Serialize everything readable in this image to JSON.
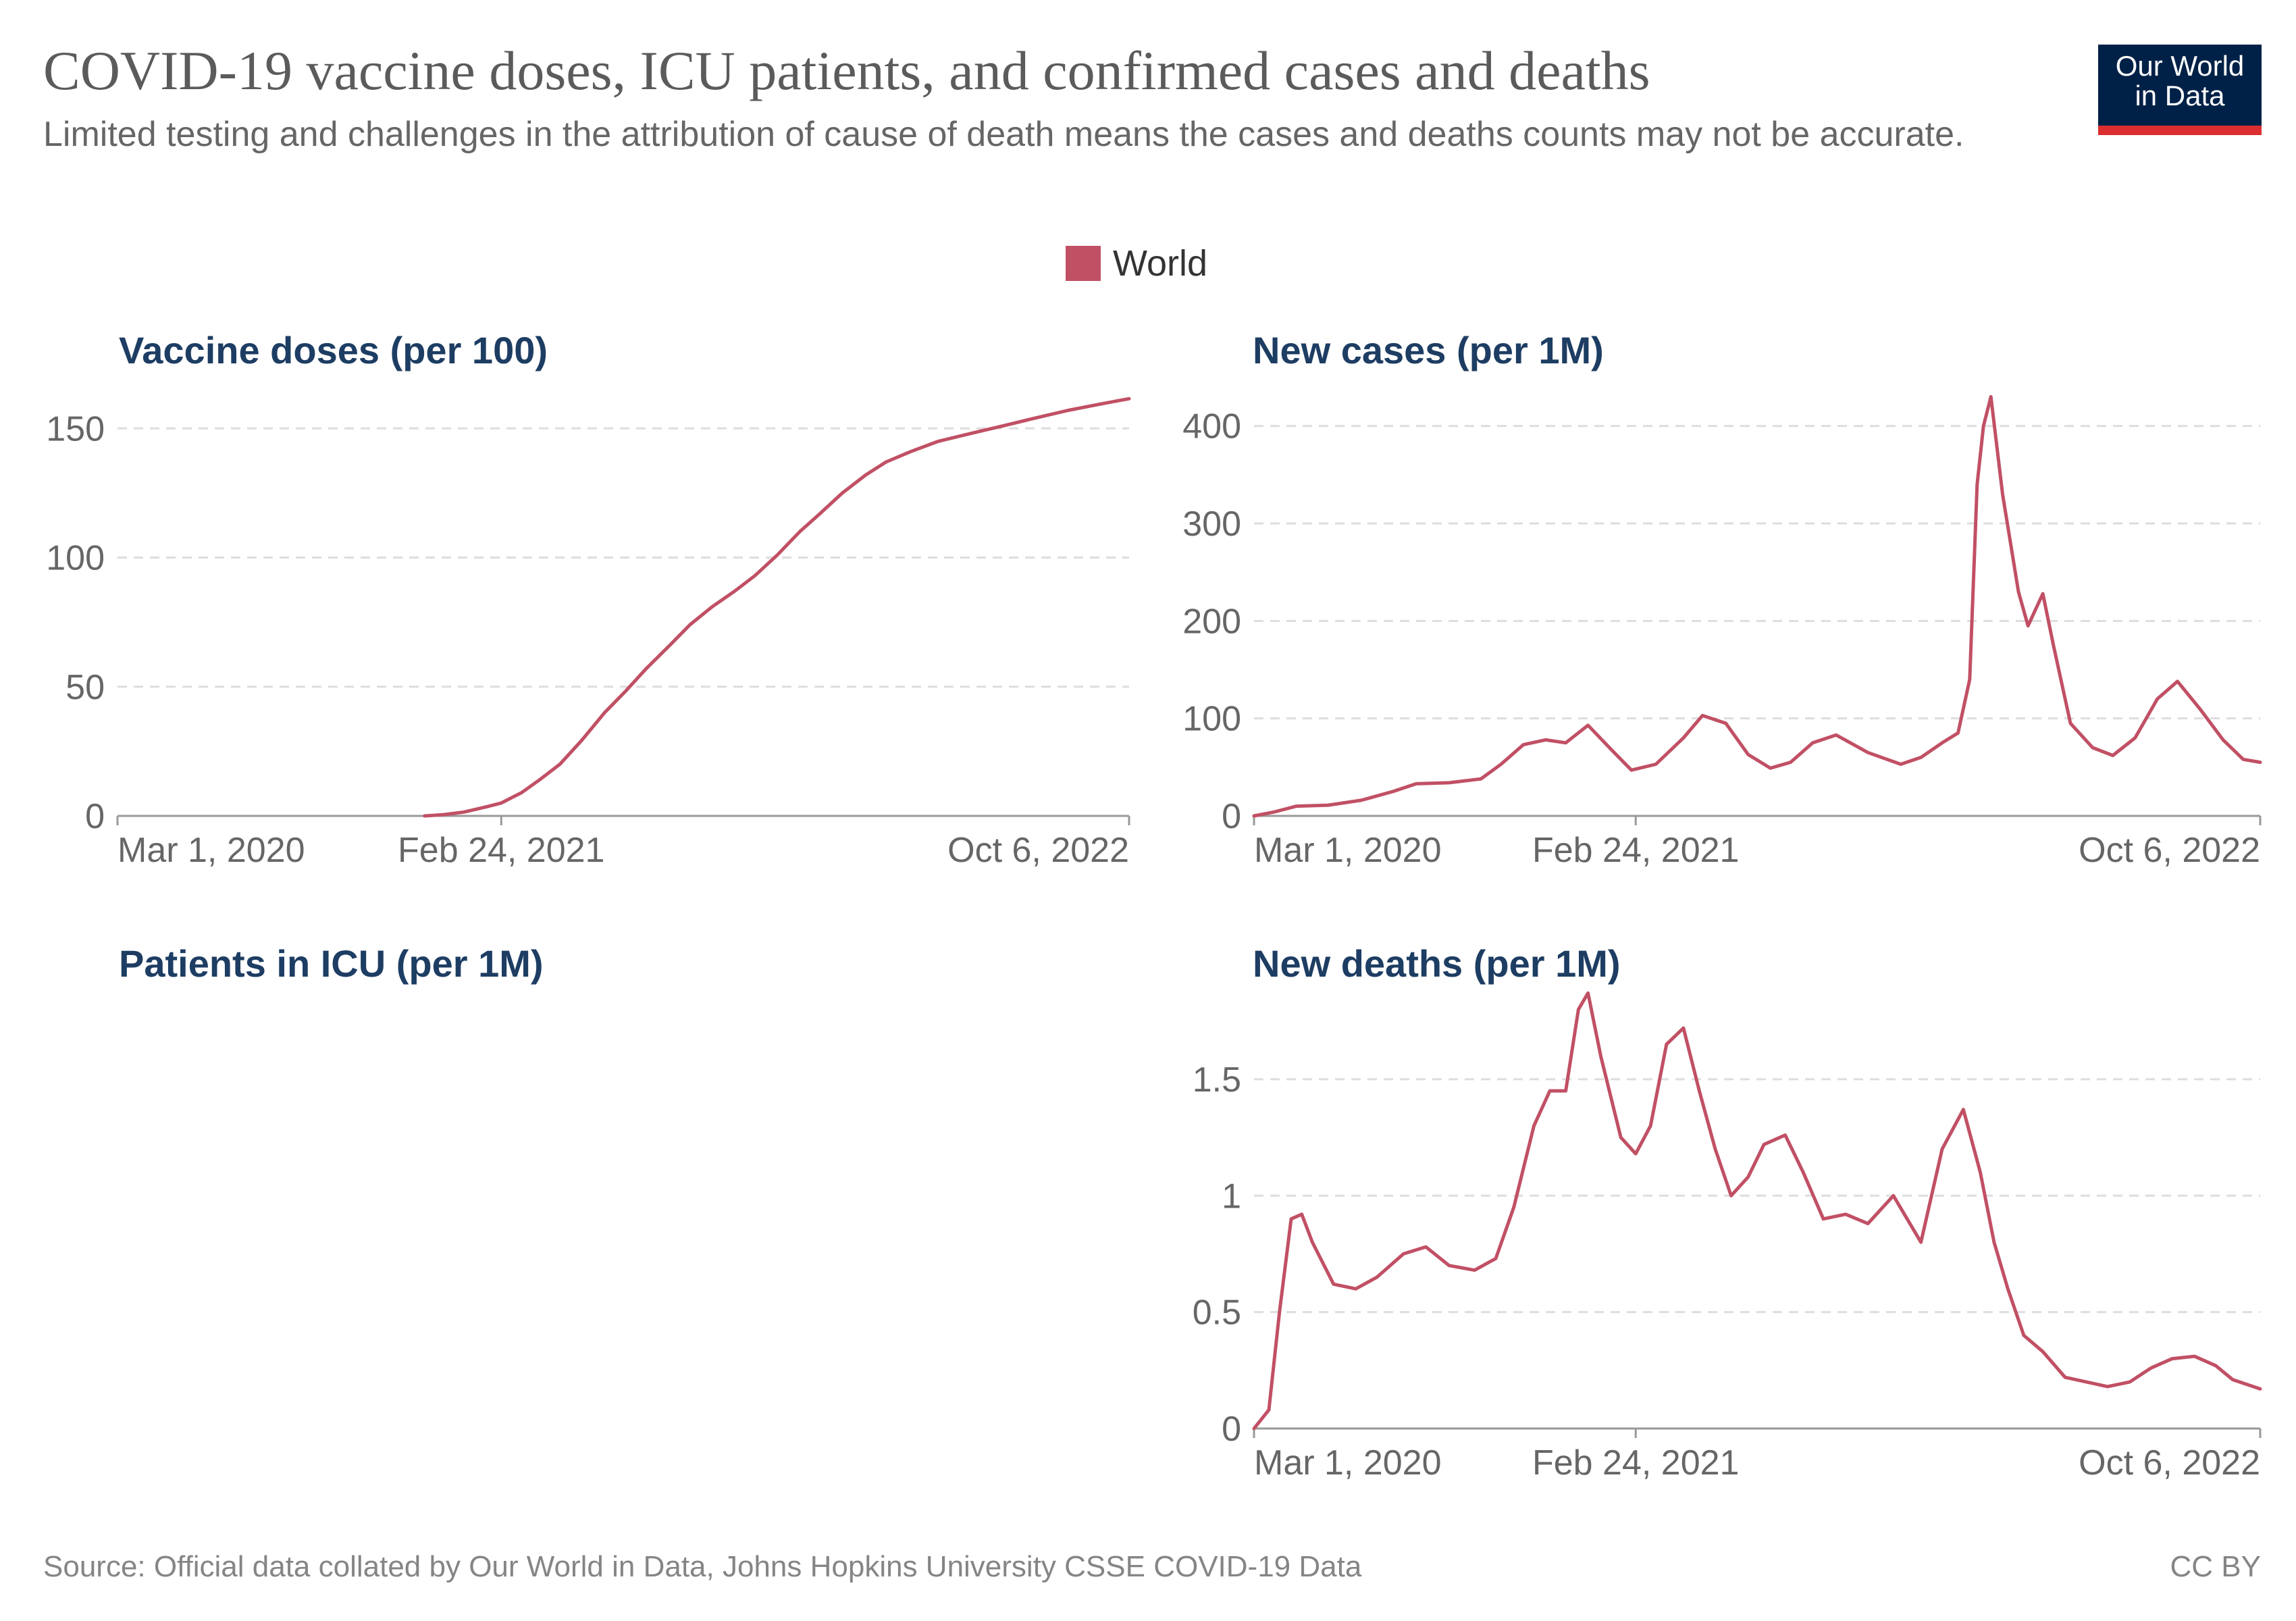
{
  "header": {
    "title": "COVID-19 vaccine doses, ICU patients, and confirmed cases and deaths",
    "subtitle": "Limited testing and challenges in the attribution of cause of death means the cases and deaths counts may not be accurate.",
    "logo_line1": "Our World",
    "logo_line2": "in Data"
  },
  "legend": {
    "label": "World",
    "color": "#c15065"
  },
  "footer": {
    "source": "Source: Official data collated by Our World in Data, Johns Hopkins University CSSE COVID-19 Data",
    "license": "CC BY"
  },
  "colors": {
    "series": "#c15065",
    "panel_title": "#1d3d63",
    "logo_bg": "#002147",
    "logo_accent": "#dc2e30"
  },
  "chart_data": [
    {
      "type": "line",
      "title": "Vaccine doses (per 100)",
      "x_ticks": [
        "Mar 1, 2020",
        "Feb 24, 2021",
        "Oct 6, 2022"
      ],
      "xlim": [
        "2020-03-01",
        "2022-10-06"
      ],
      "ylim": [
        0,
        160
      ],
      "y_ticks": [
        0,
        50,
        100,
        150
      ],
      "y_tick_labels": [
        "0",
        "50",
        "100",
        "150"
      ],
      "grid": true,
      "series": [
        {
          "name": "World",
          "x": [
            "2020-12-14",
            "2021-01-01",
            "2021-01-20",
            "2021-02-10",
            "2021-02-24",
            "2021-03-15",
            "2021-04-01",
            "2021-04-20",
            "2021-05-10",
            "2021-06-01",
            "2021-06-20",
            "2021-07-10",
            "2021-08-01",
            "2021-08-20",
            "2021-09-10",
            "2021-10-01",
            "2021-10-20",
            "2021-11-10",
            "2021-12-01",
            "2021-12-20",
            "2022-01-10",
            "2022-02-01",
            "2022-02-20",
            "2022-03-15",
            "2022-04-10",
            "2022-05-10",
            "2022-06-10",
            "2022-07-10",
            "2022-08-10",
            "2022-09-10",
            "2022-10-06"
          ],
          "values": [
            0,
            0.5,
            1.5,
            3.5,
            5,
            9,
            14,
            20,
            29,
            40,
            48,
            57,
            66,
            74,
            81,
            87,
            93,
            101,
            110,
            117,
            125,
            132,
            137,
            141,
            145,
            148,
            151,
            154,
            157,
            159.5,
            161.5
          ]
        }
      ]
    },
    {
      "type": "line",
      "title": "New cases (per 1M)",
      "x_ticks": [
        "Mar 1, 2020",
        "Feb 24, 2021",
        "Oct 6, 2022"
      ],
      "xlim": [
        "2020-03-01",
        "2022-10-06"
      ],
      "ylim": [
        0,
        440
      ],
      "y_ticks": [
        0,
        100,
        200,
        300,
        400
      ],
      "y_tick_labels": [
        "0",
        "100",
        "200",
        "300",
        "400"
      ],
      "grid": true,
      "series": [
        {
          "name": "World",
          "x": [
            "2020-03-01",
            "2020-03-20",
            "2020-04-10",
            "2020-05-10",
            "2020-06-10",
            "2020-07-10",
            "2020-08-01",
            "2020-09-01",
            "2020-10-01",
            "2020-10-20",
            "2020-11-10",
            "2020-12-01",
            "2020-12-20",
            "2021-01-10",
            "2021-02-01",
            "2021-02-20",
            "2021-03-15",
            "2021-04-10",
            "2021-04-28",
            "2021-05-20",
            "2021-06-10",
            "2021-07-01",
            "2021-07-20",
            "2021-08-10",
            "2021-09-01",
            "2021-10-01",
            "2021-11-01",
            "2021-11-20",
            "2021-12-10",
            "2021-12-25",
            "2022-01-05",
            "2022-01-12",
            "2022-01-18",
            "2022-01-25",
            "2022-02-05",
            "2022-02-20",
            "2022-03-01",
            "2022-03-15",
            "2022-03-25",
            "2022-04-10",
            "2022-05-01",
            "2022-05-20",
            "2022-06-10",
            "2022-07-01",
            "2022-07-20",
            "2022-08-10",
            "2022-09-01",
            "2022-09-20",
            "2022-10-06"
          ],
          "values": [
            0,
            4,
            10,
            11,
            16,
            25,
            33,
            34,
            38,
            53,
            73,
            78,
            75,
            93,
            68,
            47,
            53,
            80,
            103,
            95,
            63,
            49,
            55,
            75,
            83,
            65,
            53,
            60,
            75,
            85,
            140,
            340,
            400,
            430,
            330,
            230,
            195,
            228,
            175,
            95,
            70,
            62,
            80,
            120,
            138,
            110,
            78,
            58,
            55
          ]
        }
      ]
    },
    {
      "type": "line",
      "title": "Patients in ICU (per 1M)",
      "x_ticks": [],
      "series": []
    },
    {
      "type": "line",
      "title": "New deaths (per 1M)",
      "x_ticks": [
        "Mar 1, 2020",
        "Feb 24, 2021",
        "Oct 6, 2022"
      ],
      "xlim": [
        "2020-03-01",
        "2022-10-06"
      ],
      "ylim": [
        0,
        1.9
      ],
      "y_ticks": [
        0,
        0.5,
        1,
        1.5
      ],
      "y_tick_labels": [
        "0",
        "0.5",
        "1",
        "1.5"
      ],
      "grid": true,
      "series": [
        {
          "name": "World",
          "x": [
            "2020-03-01",
            "2020-03-15",
            "2020-03-25",
            "2020-04-05",
            "2020-04-15",
            "2020-04-25",
            "2020-05-15",
            "2020-06-05",
            "2020-06-25",
            "2020-07-20",
            "2020-08-10",
            "2020-09-01",
            "2020-09-25",
            "2020-10-15",
            "2020-11-01",
            "2020-11-20",
            "2020-12-05",
            "2020-12-20",
            "2021-01-01",
            "2021-01-10",
            "2021-01-22",
            "2021-02-10",
            "2021-02-24",
            "2021-03-10",
            "2021-03-25",
            "2021-04-10",
            "2021-04-25",
            "2021-05-10",
            "2021-05-25",
            "2021-06-10",
            "2021-06-25",
            "2021-07-15",
            "2021-08-01",
            "2021-08-20",
            "2021-09-10",
            "2021-10-01",
            "2021-10-25",
            "2021-11-20",
            "2021-12-10",
            "2021-12-30",
            "2022-01-15",
            "2022-01-28",
            "2022-02-10",
            "2022-02-25",
            "2022-03-15",
            "2022-04-05",
            "2022-04-25",
            "2022-05-15",
            "2022-06-05",
            "2022-06-25",
            "2022-07-15",
            "2022-08-05",
            "2022-08-25",
            "2022-09-10",
            "2022-10-06"
          ],
          "values": [
            0,
            0.08,
            0.5,
            0.9,
            0.92,
            0.8,
            0.62,
            0.6,
            0.65,
            0.75,
            0.78,
            0.7,
            0.68,
            0.73,
            0.95,
            1.3,
            1.45,
            1.45,
            1.8,
            1.87,
            1.6,
            1.25,
            1.18,
            1.3,
            1.65,
            1.72,
            1.45,
            1.2,
            1.0,
            1.08,
            1.22,
            1.26,
            1.1,
            0.9,
            0.92,
            0.88,
            1.0,
            0.8,
            1.2,
            1.37,
            1.1,
            0.8,
            0.6,
            0.4,
            0.33,
            0.22,
            0.2,
            0.18,
            0.2,
            0.26,
            0.3,
            0.31,
            0.27,
            0.21,
            0.17
          ]
        }
      ]
    }
  ]
}
